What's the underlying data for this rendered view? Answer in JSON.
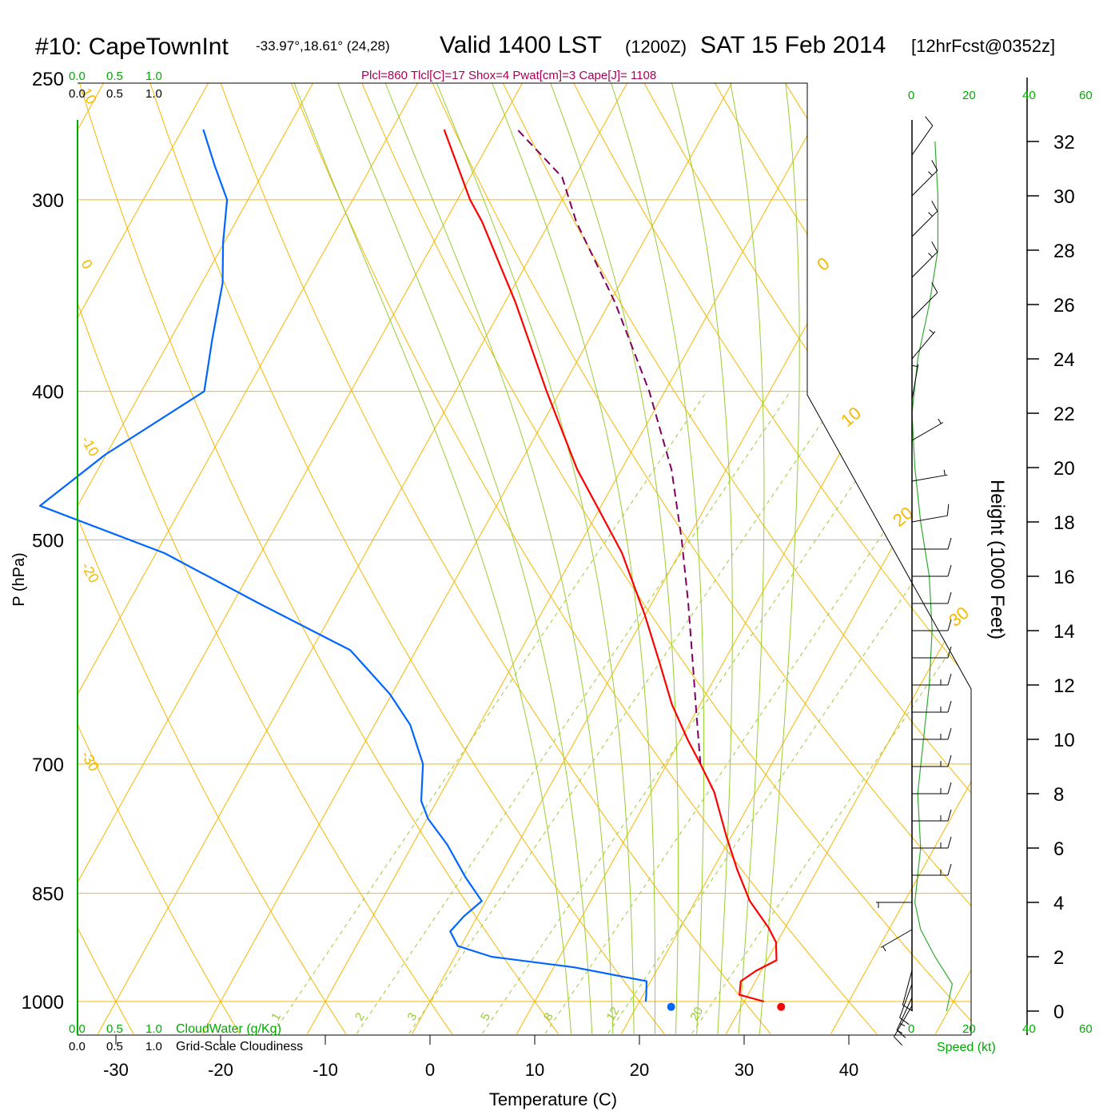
{
  "title": {
    "station": "#10: CapeTownInt",
    "coords": "-33.97°,18.61° (24,28)",
    "valid": "Valid 1400 LST",
    "zulu": "(1200Z)",
    "date": "SAT 15 Feb 2014",
    "forecast": "[12hrFcst@0352z]"
  },
  "indices": "Plcl=860 Tlcl[C]=17 Shox=4 Pwat[cm]=3 Cape[J]= 1108",
  "colors": {
    "isobar": "#f5b800",
    "isotherm": "#f5b800",
    "dry_adiabat": "#f5b800",
    "moist_adiabat": "#99cc33",
    "mixing_ratio": "#99cc33",
    "temperature": "#ff0000",
    "dewpoint": "#0066ff",
    "parcel": "#800060",
    "green_label": "#00aa00",
    "indices_text": "#aa0055",
    "axis": "#000000"
  },
  "chart_data": {
    "type": "line",
    "diagram": "skew-T log-P",
    "xlabel": "Temperature (C)",
    "ylabel": "P (hPa)",
    "right_label": "Height (1000 Feet)",
    "x_ticks": [
      -30,
      -20,
      -10,
      0,
      10,
      20,
      30,
      40
    ],
    "y_ticks": [
      250,
      300,
      400,
      500,
      700,
      850,
      1000
    ],
    "xlim": [
      -33,
      36
    ],
    "ylim": [
      1040,
      250
    ],
    "log_pressure": true,
    "skew_deg_per_logp": 35.4,
    "height_ticks": [
      0,
      2,
      4,
      6,
      8,
      10,
      12,
      14,
      16,
      18,
      20,
      22,
      24,
      26,
      28,
      30,
      32
    ],
    "isotherm_labels": [
      {
        "text": "10",
        "T": 10,
        "p": 255
      },
      {
        "text": "0",
        "T": 0,
        "p": 330
      },
      {
        "text": "-10",
        "T": -10,
        "p": 430
      },
      {
        "text": "-20",
        "T": -20,
        "p": 520
      },
      {
        "text": "-30",
        "T": -30,
        "p": 690
      }
    ],
    "moist_adiabat_T1000": [
      14,
      16,
      18,
      20,
      22,
      24,
      26,
      28,
      30,
      32
    ],
    "mixing_ratio_lines": [
      {
        "label": "1",
        "T1000": -15
      },
      {
        "label": "2",
        "T1000": -7
      },
      {
        "label": "3",
        "T1000": -2
      },
      {
        "label": "5",
        "T1000": 5
      },
      {
        "label": "8",
        "T1000": 11
      },
      {
        "label": "12",
        "T1000": 17
      },
      {
        "label": "20",
        "T1000": 25
      }
    ],
    "series": [
      {
        "name": "Temperature",
        "color": "#ff0000",
        "points": [
          [
            31.9,
            1000
          ],
          [
            29.2,
            990
          ],
          [
            28.6,
            970
          ],
          [
            29.5,
            955
          ],
          [
            30.9,
            940
          ],
          [
            29.9,
            915
          ],
          [
            28.4,
            895
          ],
          [
            25.2,
            860
          ],
          [
            22.3,
            820
          ],
          [
            19.5,
            780
          ],
          [
            16.0,
            730
          ],
          [
            13.2,
            700
          ],
          [
            10.7,
            675
          ],
          [
            7.3,
            640
          ],
          [
            3.8,
            600
          ],
          [
            0.0,
            560
          ],
          [
            -5.5,
            510
          ],
          [
            -9.7,
            480
          ],
          [
            -14.2,
            450
          ],
          [
            -21.3,
            400
          ],
          [
            -29.0,
            350
          ],
          [
            -36.5,
            310
          ],
          [
            -38.8,
            300
          ],
          [
            -45.0,
            270
          ]
        ]
      },
      {
        "name": "Dewpoint",
        "color": "#0066ff",
        "points": [
          [
            20.6,
            1000
          ],
          [
            20.3,
            990
          ],
          [
            19.6,
            970
          ],
          [
            12.0,
            950
          ],
          [
            3.5,
            935
          ],
          [
            -0.3,
            920
          ],
          [
            -1.8,
            900
          ],
          [
            -1.3,
            880
          ],
          [
            -0.4,
            860
          ],
          [
            -3.2,
            830
          ],
          [
            -6.7,
            790
          ],
          [
            -9.9,
            760
          ],
          [
            -11.5,
            740
          ],
          [
            -13.3,
            700
          ],
          [
            -16.6,
            660
          ],
          [
            -20.2,
            630
          ],
          [
            -26.3,
            590
          ],
          [
            -37.5,
            550
          ],
          [
            -49.2,
            510
          ],
          [
            -63.6,
            475
          ],
          [
            -60.1,
            440
          ],
          [
            -54.0,
            400
          ],
          [
            -56.0,
            370
          ],
          [
            -58.0,
            340
          ],
          [
            -60.1,
            320
          ],
          [
            -62.0,
            300
          ],
          [
            -65.0,
            285
          ],
          [
            -68.0,
            270
          ]
        ]
      },
      {
        "name": "Parcel",
        "color": "#800060",
        "dashed": true,
        "points": [
          [
            13.2,
            700
          ],
          [
            10.2,
            650
          ],
          [
            7.0,
            600
          ],
          [
            3.5,
            550
          ],
          [
            -0.5,
            500
          ],
          [
            -5.2,
            450
          ],
          [
            -11.5,
            400
          ],
          [
            -19.5,
            350
          ],
          [
            -27.5,
            310
          ],
          [
            -31.2,
            290
          ],
          [
            -38.0,
            270
          ]
        ]
      },
      {
        "name": "Surface markers",
        "points": [
          {
            "T": 23.1,
            "p": 1002,
            "color": "#0066ff"
          },
          {
            "T": 33.6,
            "p": 1002,
            "color": "#ff0000"
          }
        ]
      }
    ],
    "cloud_panel": {
      "cloudwater_label": "CloudWater (g/Kg)",
      "cloudiness_label": "Grid-Scale Cloudiness",
      "ticks": [
        "0.0",
        "0.5",
        "1.0"
      ]
    },
    "wind_panel": {
      "speed_label": "Speed (kt)",
      "speed_ticks": [
        "0",
        "20",
        "40",
        "60"
      ],
      "speed_profile_kt": [
        [
          0,
          12
        ],
        [
          1,
          14
        ],
        [
          2,
          8
        ],
        [
          3,
          3
        ],
        [
          4,
          1
        ],
        [
          5,
          2
        ],
        [
          6,
          3
        ],
        [
          8,
          2
        ],
        [
          10,
          4
        ],
        [
          12,
          6
        ],
        [
          14,
          7
        ],
        [
          16,
          6
        ],
        [
          18,
          3
        ],
        [
          20,
          1
        ],
        [
          22,
          0
        ],
        [
          24,
          2
        ],
        [
          26,
          6
        ],
        [
          28,
          9
        ],
        [
          30,
          9
        ],
        [
          32,
          8
        ]
      ],
      "barbs": [
        {
          "h": 0.2,
          "dir": 150,
          "spd": 15
        },
        {
          "h": 0.5,
          "dir": 155,
          "spd": 15
        },
        {
          "h": 1.0,
          "dir": 160,
          "spd": 10
        },
        {
          "h": 1.5,
          "dir": 165,
          "spd": 10
        },
        {
          "h": 3.0,
          "dir": 120,
          "spd": 5
        },
        {
          "h": 4.0,
          "dir": 90,
          "spd": 5
        },
        {
          "h": 5.0,
          "dir": 270,
          "spd": 15
        },
        {
          "h": 6.0,
          "dir": 270,
          "spd": 15
        },
        {
          "h": 7.0,
          "dir": 270,
          "spd": 15
        },
        {
          "h": 8.0,
          "dir": 270,
          "spd": 15
        },
        {
          "h": 9.0,
          "dir": 270,
          "spd": 15
        },
        {
          "h": 10.0,
          "dir": 270,
          "spd": 15
        },
        {
          "h": 11.0,
          "dir": 270,
          "spd": 15
        },
        {
          "h": 12.0,
          "dir": 270,
          "spd": 15
        },
        {
          "h": 13.0,
          "dir": 270,
          "spd": 10
        },
        {
          "h": 14.0,
          "dir": 270,
          "spd": 10
        },
        {
          "h": 15.0,
          "dir": 270,
          "spd": 10
        },
        {
          "h": 16.0,
          "dir": 270,
          "spd": 10
        },
        {
          "h": 17.0,
          "dir": 270,
          "spd": 10
        },
        {
          "h": 18.0,
          "dir": 280,
          "spd": 10
        },
        {
          "h": 19.5,
          "dir": 280,
          "spd": 5
        },
        {
          "h": 21.0,
          "dir": 300,
          "spd": 5
        },
        {
          "h": 22.5,
          "dir": 350,
          "spd": 5
        },
        {
          "h": 24.0,
          "dir": 320,
          "spd": 5
        },
        {
          "h": 25.5,
          "dir": 315,
          "spd": 10
        },
        {
          "h": 27.0,
          "dir": 315,
          "spd": 15
        },
        {
          "h": 28.5,
          "dir": 315,
          "spd": 15
        },
        {
          "h": 30.0,
          "dir": 315,
          "spd": 15
        },
        {
          "h": 31.5,
          "dir": 325,
          "spd": 10
        }
      ]
    }
  }
}
